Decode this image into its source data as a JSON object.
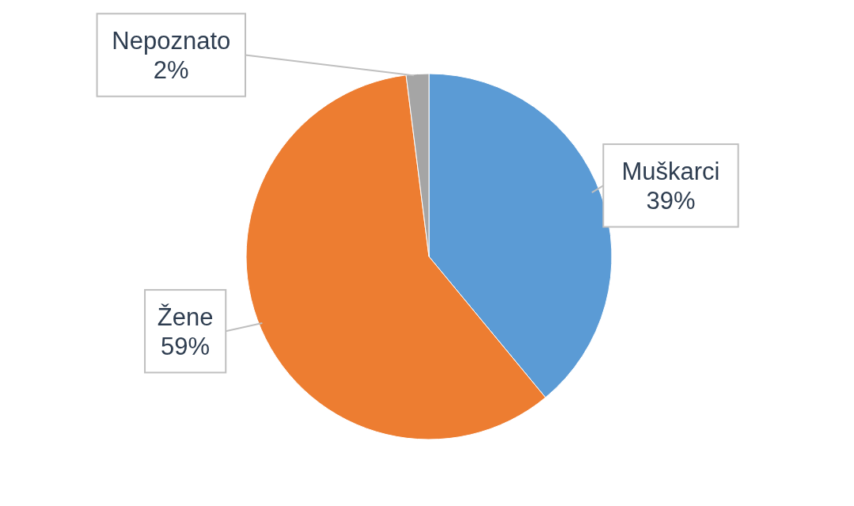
{
  "chart_data": {
    "type": "pie",
    "categories": [
      "Muškarci",
      "Žene",
      "Nepoznato"
    ],
    "values": [
      39,
      59,
      2
    ],
    "colors": [
      "#5b9bd5",
      "#ed7d31",
      "#a5a5a5"
    ],
    "value_labels": [
      "39%",
      "59%",
      "2%"
    ]
  }
}
